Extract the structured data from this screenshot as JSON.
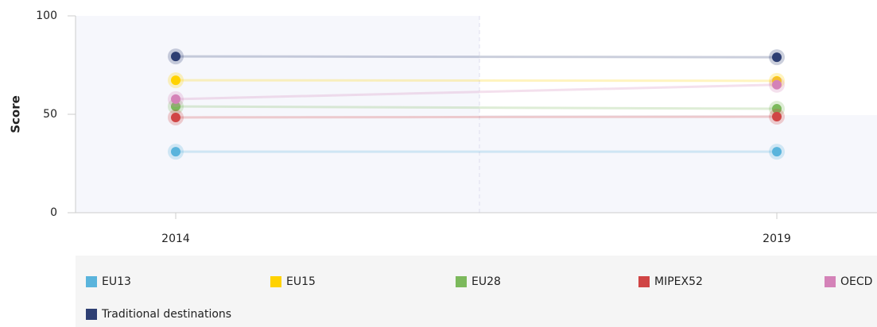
{
  "chart_data": {
    "type": "line",
    "y_label": "Score",
    "categories": [
      "2014",
      "2019"
    ],
    "ylim": [
      0,
      100
    ],
    "yticks": [
      0,
      50,
      100
    ],
    "series": [
      {
        "name": "EU13",
        "color": "#5ab4dc",
        "values": [
          31,
          31
        ]
      },
      {
        "name": "EU15",
        "color": "#ffd200",
        "values": [
          67.3,
          67
        ]
      },
      {
        "name": "EU28",
        "color": "#7cb95c",
        "values": [
          54,
          52.8
        ]
      },
      {
        "name": "MIPEX52",
        "color": "#d04545",
        "values": [
          48.4,
          48.8
        ]
      },
      {
        "name": "OECD",
        "color": "#d482b8",
        "values": [
          57.7,
          65
        ]
      },
      {
        "name": "Traditional destinations",
        "color": "#2e3f73",
        "values": [
          79.4,
          79
        ]
      }
    ]
  }
}
